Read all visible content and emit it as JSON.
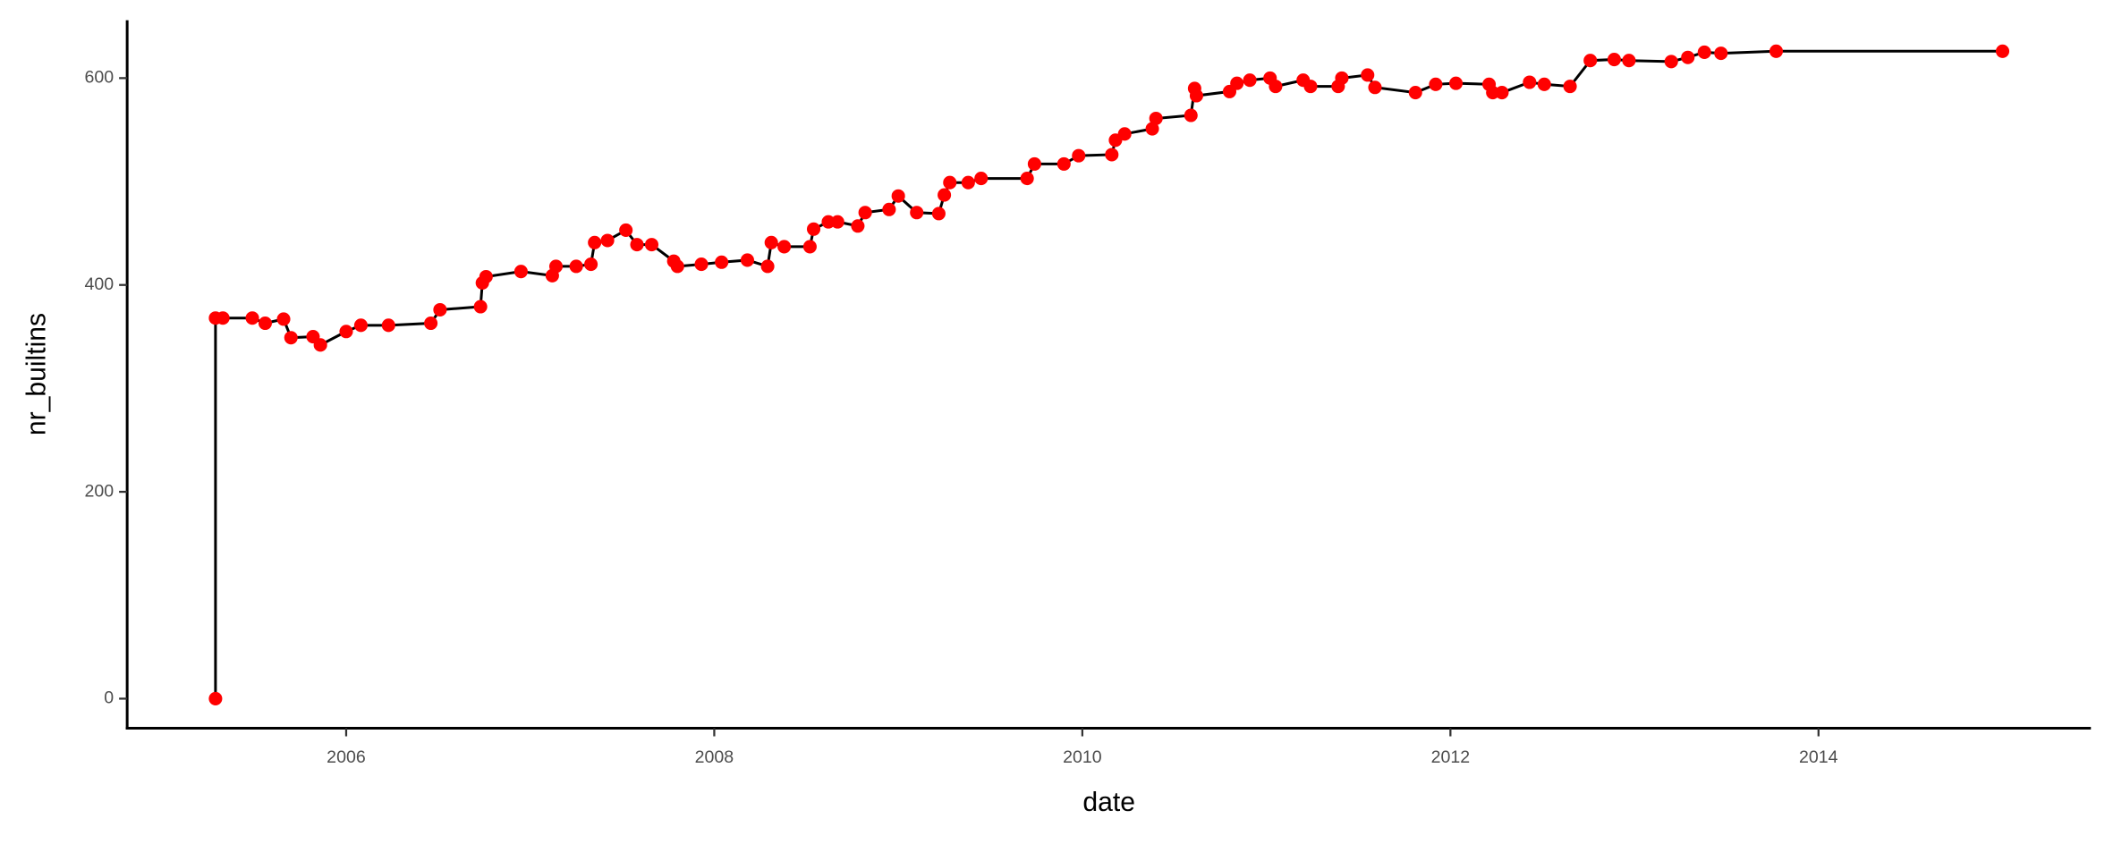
{
  "chart_data": {
    "type": "line",
    "xlabel": "date",
    "ylabel": "nr_builtins",
    "line_color": "#000000",
    "point_color": "#ff0000",
    "xlim": [
      2004.81,
      2015.48
    ],
    "xticks": [
      2006,
      2008,
      2010,
      2012,
      2014
    ],
    "ylim": [
      -28.6,
      656
    ],
    "yticks": [
      0,
      200,
      400,
      600
    ],
    "x": [
      2005.29,
      2005.29,
      2005.33,
      2005.49,
      2005.56,
      2005.66,
      2005.7,
      2005.82,
      2005.86,
      2006.0,
      2006.08,
      2006.23,
      2006.46,
      2006.51,
      2006.73,
      2006.74,
      2006.76,
      2006.95,
      2007.12,
      2007.14,
      2007.25,
      2007.33,
      2007.35,
      2007.42,
      2007.52,
      2007.58,
      2007.66,
      2007.78,
      2007.8,
      2007.93,
      2008.04,
      2008.18,
      2008.29,
      2008.31,
      2008.38,
      2008.52,
      2008.54,
      2008.62,
      2008.67,
      2008.78,
      2008.82,
      2008.95,
      2009.0,
      2009.1,
      2009.22,
      2009.25,
      2009.28,
      2009.38,
      2009.45,
      2009.7,
      2009.74,
      2009.9,
      2009.98,
      2010.16,
      2010.18,
      2010.23,
      2010.38,
      2010.4,
      2010.59,
      2010.61,
      2010.62,
      2010.8,
      2010.84,
      2010.91,
      2011.02,
      2011.05,
      2011.2,
      2011.24,
      2011.39,
      2011.41,
      2011.55,
      2011.59,
      2011.81,
      2011.92,
      2012.03,
      2012.21,
      2012.23,
      2012.28,
      2012.43,
      2012.51,
      2012.65,
      2012.76,
      2012.89,
      2012.97,
      2013.2,
      2013.29,
      2013.38,
      2013.47,
      2013.77,
      2015.0
    ],
    "values": [
      0,
      368,
      368,
      368,
      363,
      367,
      349,
      350,
      342,
      355,
      361,
      361,
      363,
      376,
      379,
      402,
      408,
      413,
      409,
      418,
      418,
      420,
      441,
      443,
      453,
      439,
      439,
      423,
      418,
      420,
      422,
      424,
      418,
      441,
      437,
      437,
      454,
      461,
      461,
      457,
      470,
      473,
      486,
      470,
      469,
      487,
      499,
      499,
      503,
      503,
      517,
      517,
      525,
      526,
      540,
      546,
      551,
      561,
      564,
      590,
      583,
      587,
      595,
      598,
      600,
      592,
      598,
      592,
      592,
      600,
      603,
      591,
      586,
      594,
      595,
      594,
      586,
      586,
      596,
      594,
      592,
      617,
      618,
      617,
      616,
      620,
      625,
      624,
      626,
      626
    ]
  }
}
